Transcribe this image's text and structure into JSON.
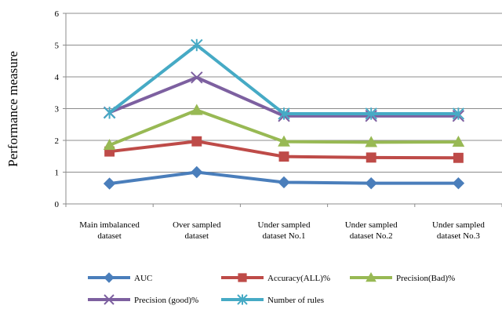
{
  "chart_data": {
    "type": "line",
    "ylabel": "Performance measure",
    "xlabel": "",
    "title": "",
    "ylim": [
      0,
      6
    ],
    "yticks": [
      0,
      1,
      2,
      3,
      4,
      5,
      6
    ],
    "grid": "horizontal",
    "legend_position": "bottom",
    "categories": [
      [
        "Main imbalanced",
        "dataset"
      ],
      [
        "Over sampled",
        "dataset"
      ],
      [
        "Under sampled",
        "dataset No.1"
      ],
      [
        "Under sampled",
        "dataset No.2"
      ],
      [
        "Under sampled",
        "dataset No.3"
      ]
    ],
    "series": [
      {
        "name": "AUC",
        "values": [
          0.64,
          1.0,
          0.68,
          0.65,
          0.65
        ],
        "color": "#4a7ebb",
        "marker": "diamond"
      },
      {
        "name": "Accuracy(ALL)%",
        "values": [
          1.65,
          1.97,
          1.49,
          1.46,
          1.45
        ],
        "color": "#be4b48",
        "marker": "square"
      },
      {
        "name": "Precision(Bad)%",
        "values": [
          1.85,
          2.95,
          1.96,
          1.94,
          1.95
        ],
        "color": "#98b954",
        "marker": "triangle"
      },
      {
        "name": "Precision (good)%",
        "values": [
          2.88,
          3.98,
          2.77,
          2.77,
          2.77
        ],
        "color": "#7d60a0",
        "marker": "x"
      },
      {
        "name": "Number of rules",
        "values": [
          2.87,
          5.0,
          2.84,
          2.84,
          2.84
        ],
        "color": "#46aac5",
        "marker": "star"
      }
    ]
  }
}
